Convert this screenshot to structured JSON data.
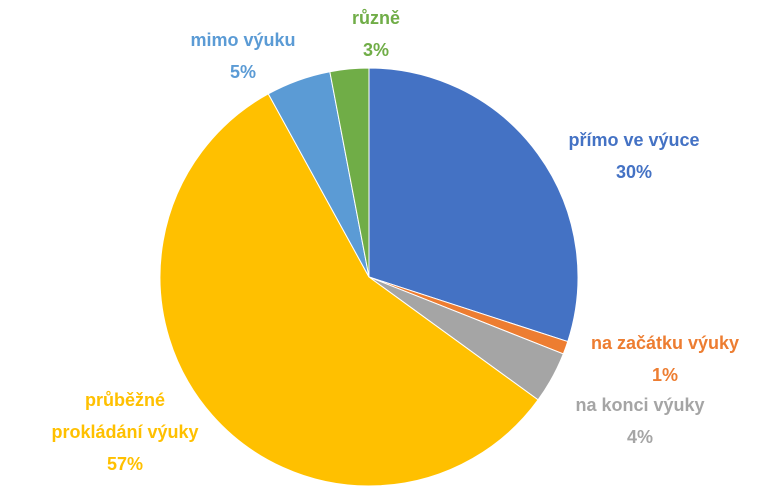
{
  "chart_data": {
    "type": "pie",
    "categories": [
      "přímo ve výuce",
      "na začátku výuky",
      "na konci výuky",
      "průběžné prokládání výuky",
      "mimo výuku",
      "různě"
    ],
    "values": [
      30,
      1,
      4,
      57,
      5,
      3
    ],
    "value_labels": [
      "30%",
      "1%",
      "4%",
      "57%",
      "5%",
      "3%"
    ],
    "colors": [
      "#4472c4",
      "#ed7d31",
      "#a5a5a5",
      "#ffc000",
      "#5b9bd5",
      "#70ad47"
    ]
  }
}
